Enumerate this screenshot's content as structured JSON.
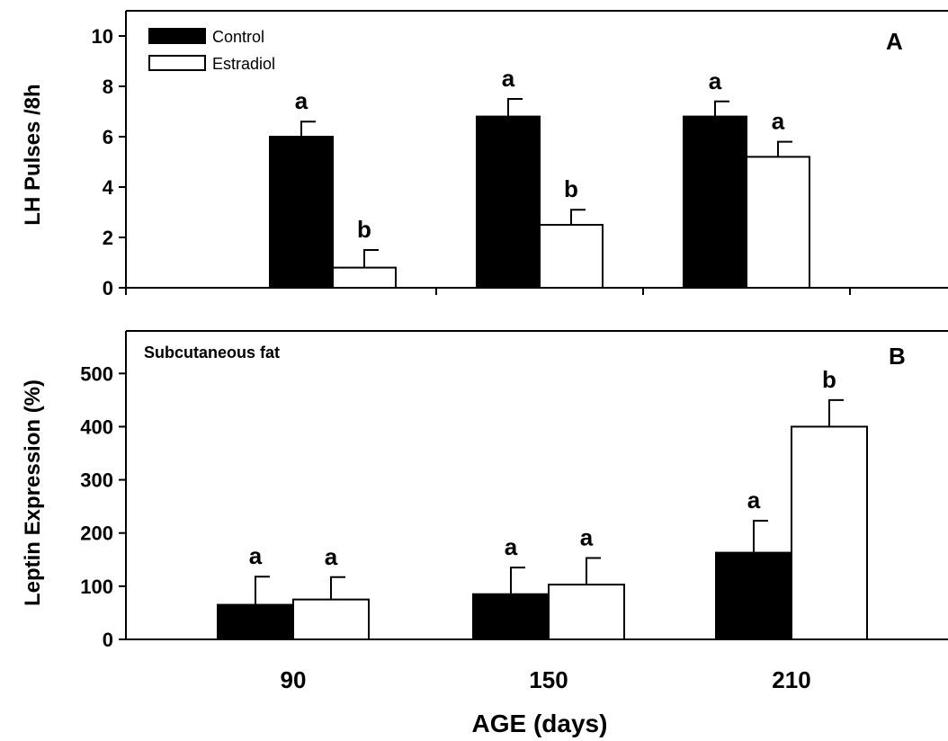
{
  "xlabel": "AGE (days)",
  "categories": [
    "90",
    "150",
    "210"
  ],
  "legend": [
    {
      "name": "Control",
      "color": "#000000"
    },
    {
      "name": "Estradiol",
      "color": "#ffffff"
    }
  ],
  "chart_data": [
    {
      "type": "bar",
      "panel": "A",
      "subtitle": "",
      "ylabel": "LH Pulses /8h",
      "ylim": [
        0,
        11
      ],
      "yticks": [
        0,
        2,
        4,
        6,
        8,
        10
      ],
      "categories": [
        "90",
        "150",
        "210"
      ],
      "series": [
        {
          "name": "Control",
          "values": [
            6.0,
            6.8,
            6.8
          ],
          "errors": [
            0.6,
            0.7,
            0.6
          ],
          "sig": [
            "a",
            "a",
            "a"
          ]
        },
        {
          "name": "Estradiol",
          "values": [
            0.8,
            2.5,
            5.2
          ],
          "errors": [
            0.7,
            0.6,
            0.6
          ],
          "sig": [
            "b",
            "b",
            "a"
          ]
        }
      ],
      "legend_position": "top-left"
    },
    {
      "type": "bar",
      "panel": "B",
      "subtitle": "Subcutaneous fat",
      "ylabel": "Leptin Expression (%)",
      "ylim": [
        0,
        580
      ],
      "yticks": [
        0,
        100,
        200,
        300,
        400,
        500
      ],
      "categories": [
        "90",
        "150",
        "210"
      ],
      "series": [
        {
          "name": "Control",
          "values": [
            65,
            85,
            163
          ],
          "errors": [
            53,
            50,
            60
          ],
          "sig": [
            "a",
            "a",
            "a"
          ]
        },
        {
          "name": "Estradiol",
          "values": [
            75,
            103,
            400
          ],
          "errors": [
            42,
            50,
            50
          ],
          "sig": [
            "a",
            "a",
            "b"
          ]
        }
      ]
    }
  ]
}
